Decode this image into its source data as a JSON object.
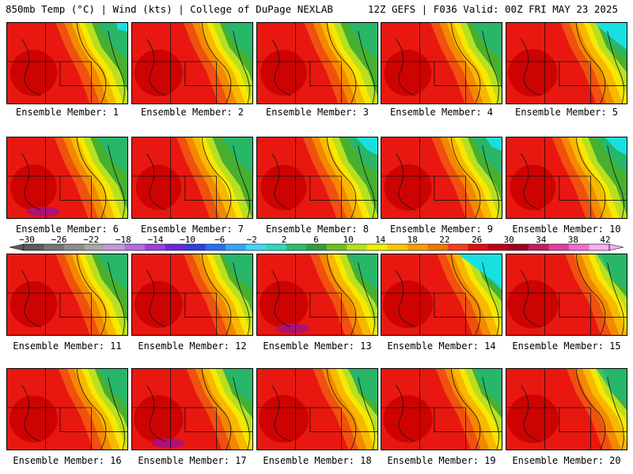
{
  "header": {
    "left": "850mb Temp (°C) | Wind (kts) | College of DuPage NEXLAB",
    "right": "12Z GEFS | F036 Valid: 00Z FRI MAY 23 2025"
  },
  "members": [
    "Ensemble Member: 1",
    "Ensemble Member: 2",
    "Ensemble Member: 3",
    "Ensemble Member: 4",
    "Ensemble Member: 5",
    "Ensemble Member: 6",
    "Ensemble Member: 7",
    "Ensemble Member: 8",
    "Ensemble Member: 9",
    "Ensemble Member: 10",
    "Ensemble Member: 11",
    "Ensemble Member: 12",
    "Ensemble Member: 13",
    "Ensemble Member: 14",
    "Ensemble Member: 15",
    "Ensemble Member: 16",
    "Ensemble Member: 17",
    "Ensemble Member: 18",
    "Ensemble Member: 19",
    "Ensemble Member: 20"
  ],
  "colorbar": {
    "labels": [
      "−30",
      "−26",
      "−22",
      "−18",
      "−14",
      "−10",
      "−6",
      "−2",
      "2",
      "6",
      "10",
      "14",
      "18",
      "22",
      "26",
      "30",
      "34",
      "38",
      "42"
    ],
    "colors": [
      "#5c5c5c",
      "#767676",
      "#8e8e8e",
      "#a8a8a8",
      "#c39ad8",
      "#b070e0",
      "#9a3fe0",
      "#6a28d8",
      "#3040e0",
      "#2a70f0",
      "#30a8f8",
      "#40d8f8",
      "#30d8c0",
      "#28c070",
      "#30a040",
      "#70c020",
      "#b8e020",
      "#f0f000",
      "#f8c800",
      "#f8a000",
      "#f07800",
      "#f04020",
      "#e01010",
      "#c00010",
      "#a00020",
      "#c02060",
      "#e040a0",
      "#f070d0",
      "#f8b0f0"
    ]
  },
  "map_colors": {
    "deep_red": "#c80000",
    "red": "#e81810",
    "orange_red": "#f05010",
    "orange": "#f48800",
    "yellow_orange": "#f8b800",
    "yellow": "#f8e800",
    "yellow_green": "#b8e020",
    "green": "#48b030",
    "teal_green": "#20b878",
    "cyan": "#18e0e0",
    "magenta": "#b01070"
  }
}
